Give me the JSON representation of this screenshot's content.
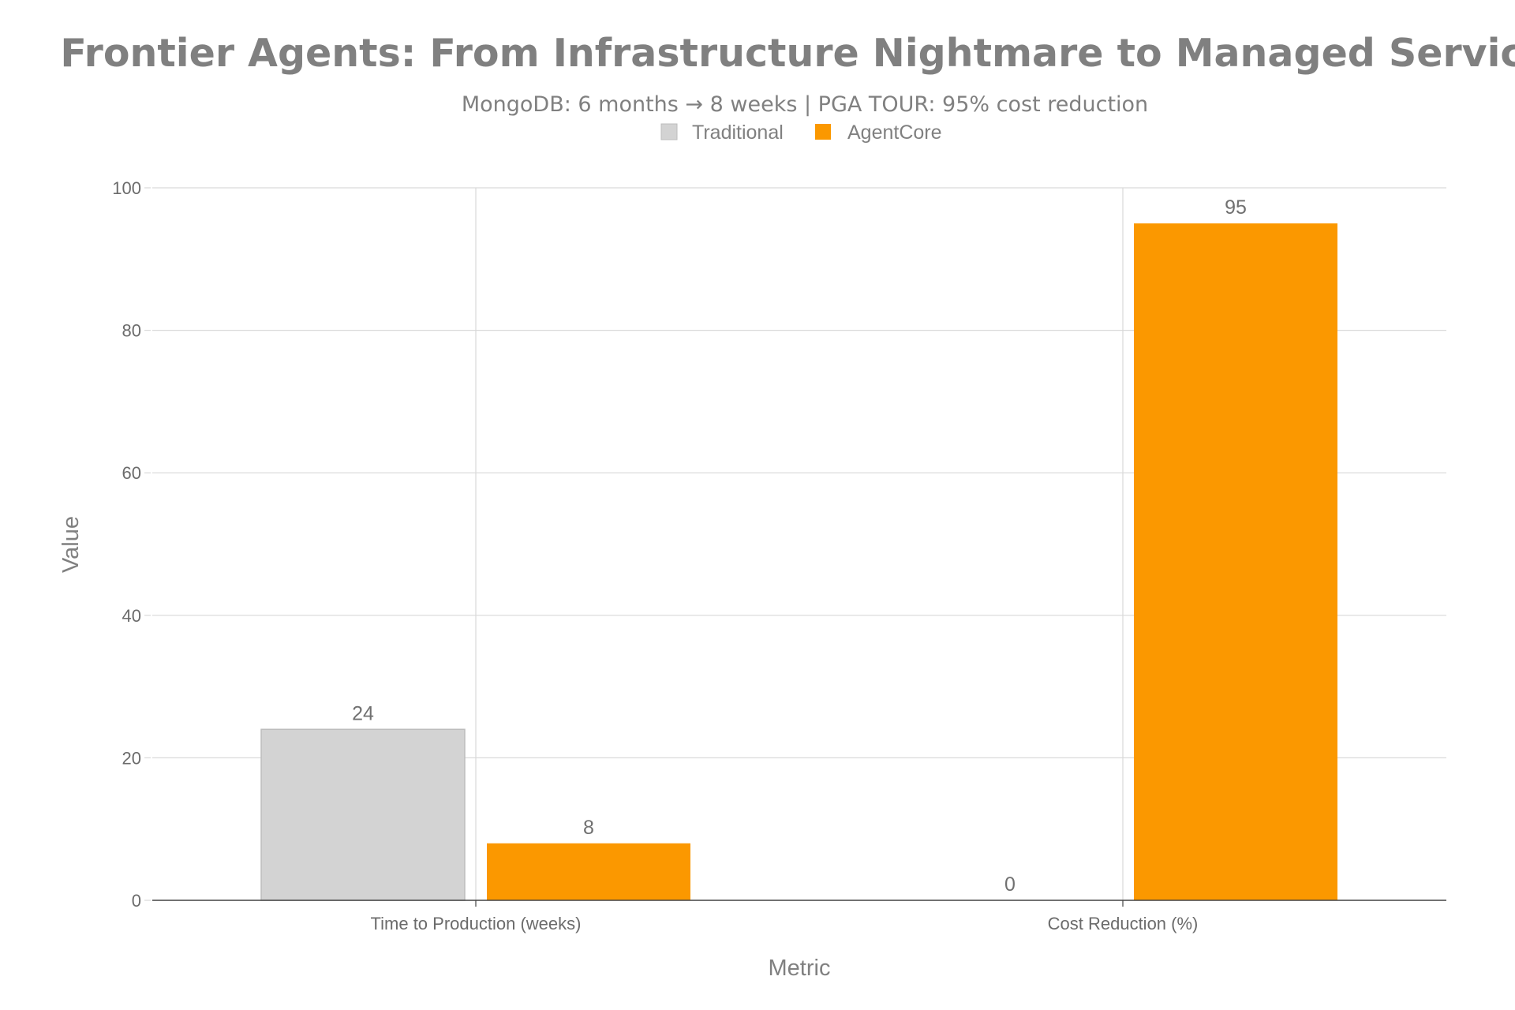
{
  "chart_data": {
    "type": "bar",
    "title": "Frontier Agents: From Infrastructure Nightmare to Managed Service",
    "subtitle": "MongoDB: 6 months → 8 weeks | PGA TOUR: 95% cost reduction",
    "xlabel": "Metric",
    "ylabel": "Value",
    "categories": [
      "Time to Production (weeks)",
      "Cost Reduction (%)"
    ],
    "series": [
      {
        "name": "Traditional",
        "values": [
          24,
          0
        ],
        "labels": [
          "24",
          "0"
        ]
      },
      {
        "name": "AgentCore",
        "values": [
          8,
          95
        ],
        "labels": [
          "8",
          "95"
        ]
      }
    ],
    "ylim": [
      0,
      100
    ],
    "yticks": [
      0,
      20,
      40,
      60,
      80,
      100
    ],
    "ytick_labels": [
      "0",
      "20",
      "40",
      "60",
      "80",
      "100"
    ],
    "grid": true,
    "legend_position": "top-center",
    "colors": {
      "Traditional": "#d3d3d3",
      "AgentCore": "#fb9800",
      "bar_outline": "#bdbdbd",
      "grid": "#d9d9d9",
      "axis": "#444444"
    }
  }
}
